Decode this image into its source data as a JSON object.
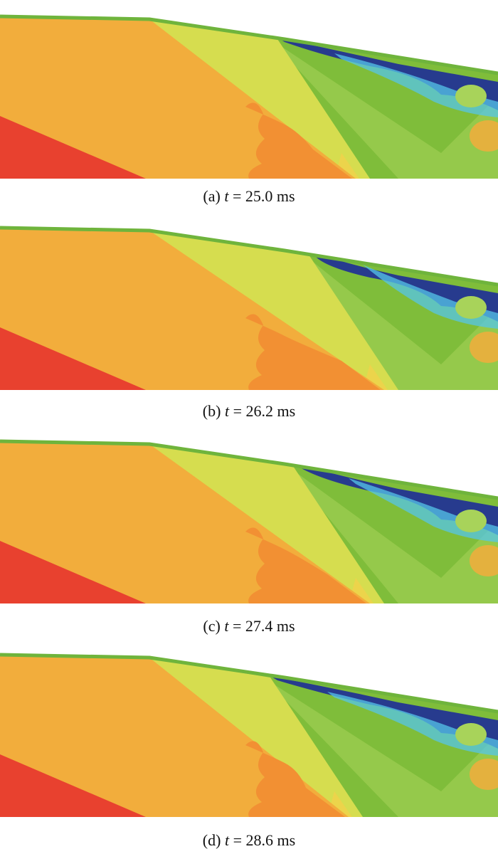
{
  "palette": {
    "red": "#e8412f",
    "orange": "#f2ad3c",
    "dark_orange": "#f29033",
    "yellow_green": "#d6dd4f",
    "green": "#7fbd3a",
    "light_green": "#a8d35a",
    "cyan": "#56c5e8",
    "blue": "#2e54a6",
    "navy": "#273b8e",
    "yellow": "#ecd44b",
    "edge_green": "#6fb43c"
  },
  "panels": [
    {
      "label": "(a)",
      "t_symbol": "t",
      "equals": "=",
      "time": "25.0 ms",
      "front_shift": 0
    },
    {
      "label": "(b)",
      "t_symbol": "t",
      "equals": "=",
      "time": "26.2 ms",
      "front_shift": 40
    },
    {
      "label": "(c)",
      "t_symbol": "t",
      "equals": "=",
      "time": "27.4 ms",
      "front_shift": 20
    },
    {
      "label": "(d)",
      "t_symbol": "t",
      "equals": "=",
      "time": "28.6 ms",
      "front_shift": -10
    }
  ]
}
